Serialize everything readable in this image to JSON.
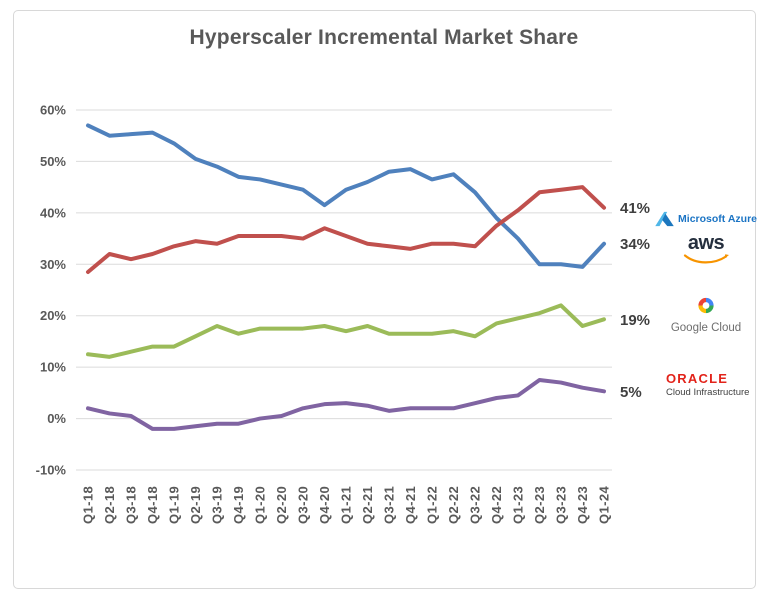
{
  "title": "Hyperscaler Incremental Market Share",
  "chart_data": {
    "type": "line",
    "title": "Hyperscaler Incremental Market Share",
    "categories": [
      "Q1-18",
      "Q2-18",
      "Q3-18",
      "Q4-18",
      "Q1-19",
      "Q2-19",
      "Q3-19",
      "Q4-19",
      "Q1-20",
      "Q2-20",
      "Q3-20",
      "Q4-20",
      "Q1-21",
      "Q2-21",
      "Q3-21",
      "Q4-21",
      "Q1-22",
      "Q2-22",
      "Q3-22",
      "Q4-22",
      "Q1-23",
      "Q2-23",
      "Q3-23",
      "Q4-23",
      "Q1-24"
    ],
    "series": [
      {
        "name": "AWS",
        "color": "#4F81BD",
        "end_label": "34%",
        "values": [
          57,
          55,
          55.3,
          55.6,
          53.5,
          50.5,
          49,
          47,
          46.5,
          45.5,
          44.5,
          41.5,
          44.5,
          46,
          48,
          48.5,
          46.5,
          47.5,
          44,
          39,
          35,
          30,
          30,
          29.5,
          34
        ]
      },
      {
        "name": "Microsoft Azure",
        "color": "#C0504D",
        "end_label": "41%",
        "values": [
          28.5,
          32,
          31,
          32,
          33.5,
          34.5,
          34,
          35.5,
          35.5,
          35.5,
          35,
          37,
          35.5,
          34,
          33.5,
          33,
          34,
          34,
          33.5,
          37.5,
          40.5,
          44,
          44.5,
          45,
          41
        ]
      },
      {
        "name": "Google Cloud",
        "color": "#9BBB59",
        "end_label": "19%",
        "values": [
          12.5,
          12,
          13,
          14,
          14,
          16,
          18,
          16.5,
          17.5,
          17.5,
          17.5,
          18,
          17,
          18,
          16.5,
          16.5,
          16.5,
          17,
          16,
          18.5,
          19.5,
          20.5,
          22,
          18,
          19.3
        ]
      },
      {
        "name": "Oracle Cloud Infrastructure",
        "color": "#8064A2",
        "end_label": "5%",
        "values": [
          2,
          1,
          0.5,
          -2,
          -2,
          -1.5,
          -1,
          -1,
          0,
          0.5,
          2,
          2.8,
          3,
          2.5,
          1.5,
          2,
          2,
          2,
          3,
          4,
          4.5,
          7.5,
          7,
          6,
          5.3
        ]
      }
    ],
    "ylim": [
      -10,
      60
    ],
    "ytick_labels": [
      "60%",
      "50%",
      "40%",
      "30%",
      "20%",
      "10%",
      "0%",
      "-10%"
    ],
    "ytick_values": [
      60,
      50,
      40,
      30,
      20,
      10,
      0,
      -10
    ],
    "xlabel": "",
    "ylabel": "",
    "grid": true,
    "legend_position": "right"
  },
  "legend": {
    "azure": {
      "brand": "Microsoft Azure"
    },
    "aws": {
      "brand": "aws"
    },
    "google": {
      "brand": "Google Cloud"
    },
    "oracle": {
      "brand": "ORACLE",
      "sub": "Cloud Infrastructure"
    }
  }
}
